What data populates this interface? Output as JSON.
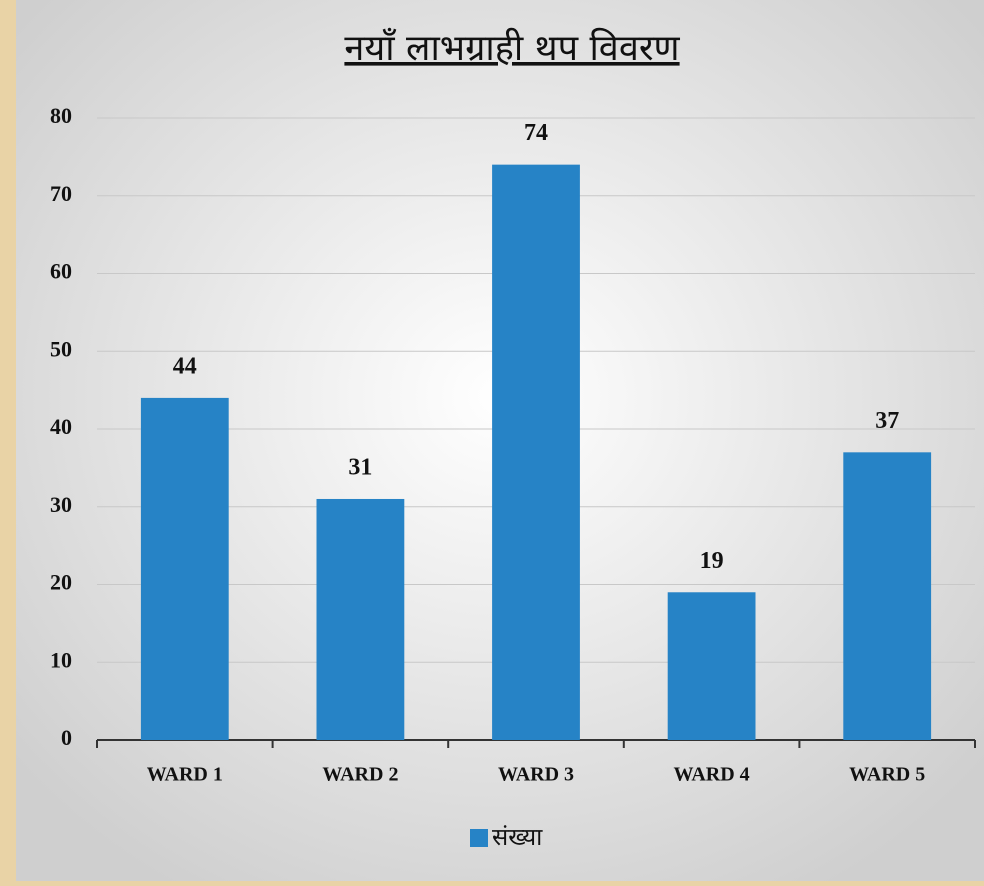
{
  "chart_data": {
    "type": "bar",
    "title": "नयाँ लाभग्राही थप विवरण",
    "categories": [
      "WARD 1",
      "WARD 2",
      "WARD 3",
      "WARD 4",
      "WARD 5"
    ],
    "series": [
      {
        "name": "संख्या",
        "color": "#2683c6",
        "values": [
          44,
          31,
          74,
          19,
          37
        ]
      }
    ],
    "ylim": [
      0,
      80
    ],
    "yticks": [
      0,
      10,
      20,
      30,
      40,
      50,
      60,
      70,
      80
    ],
    "grid": true,
    "legend": "bottom"
  }
}
